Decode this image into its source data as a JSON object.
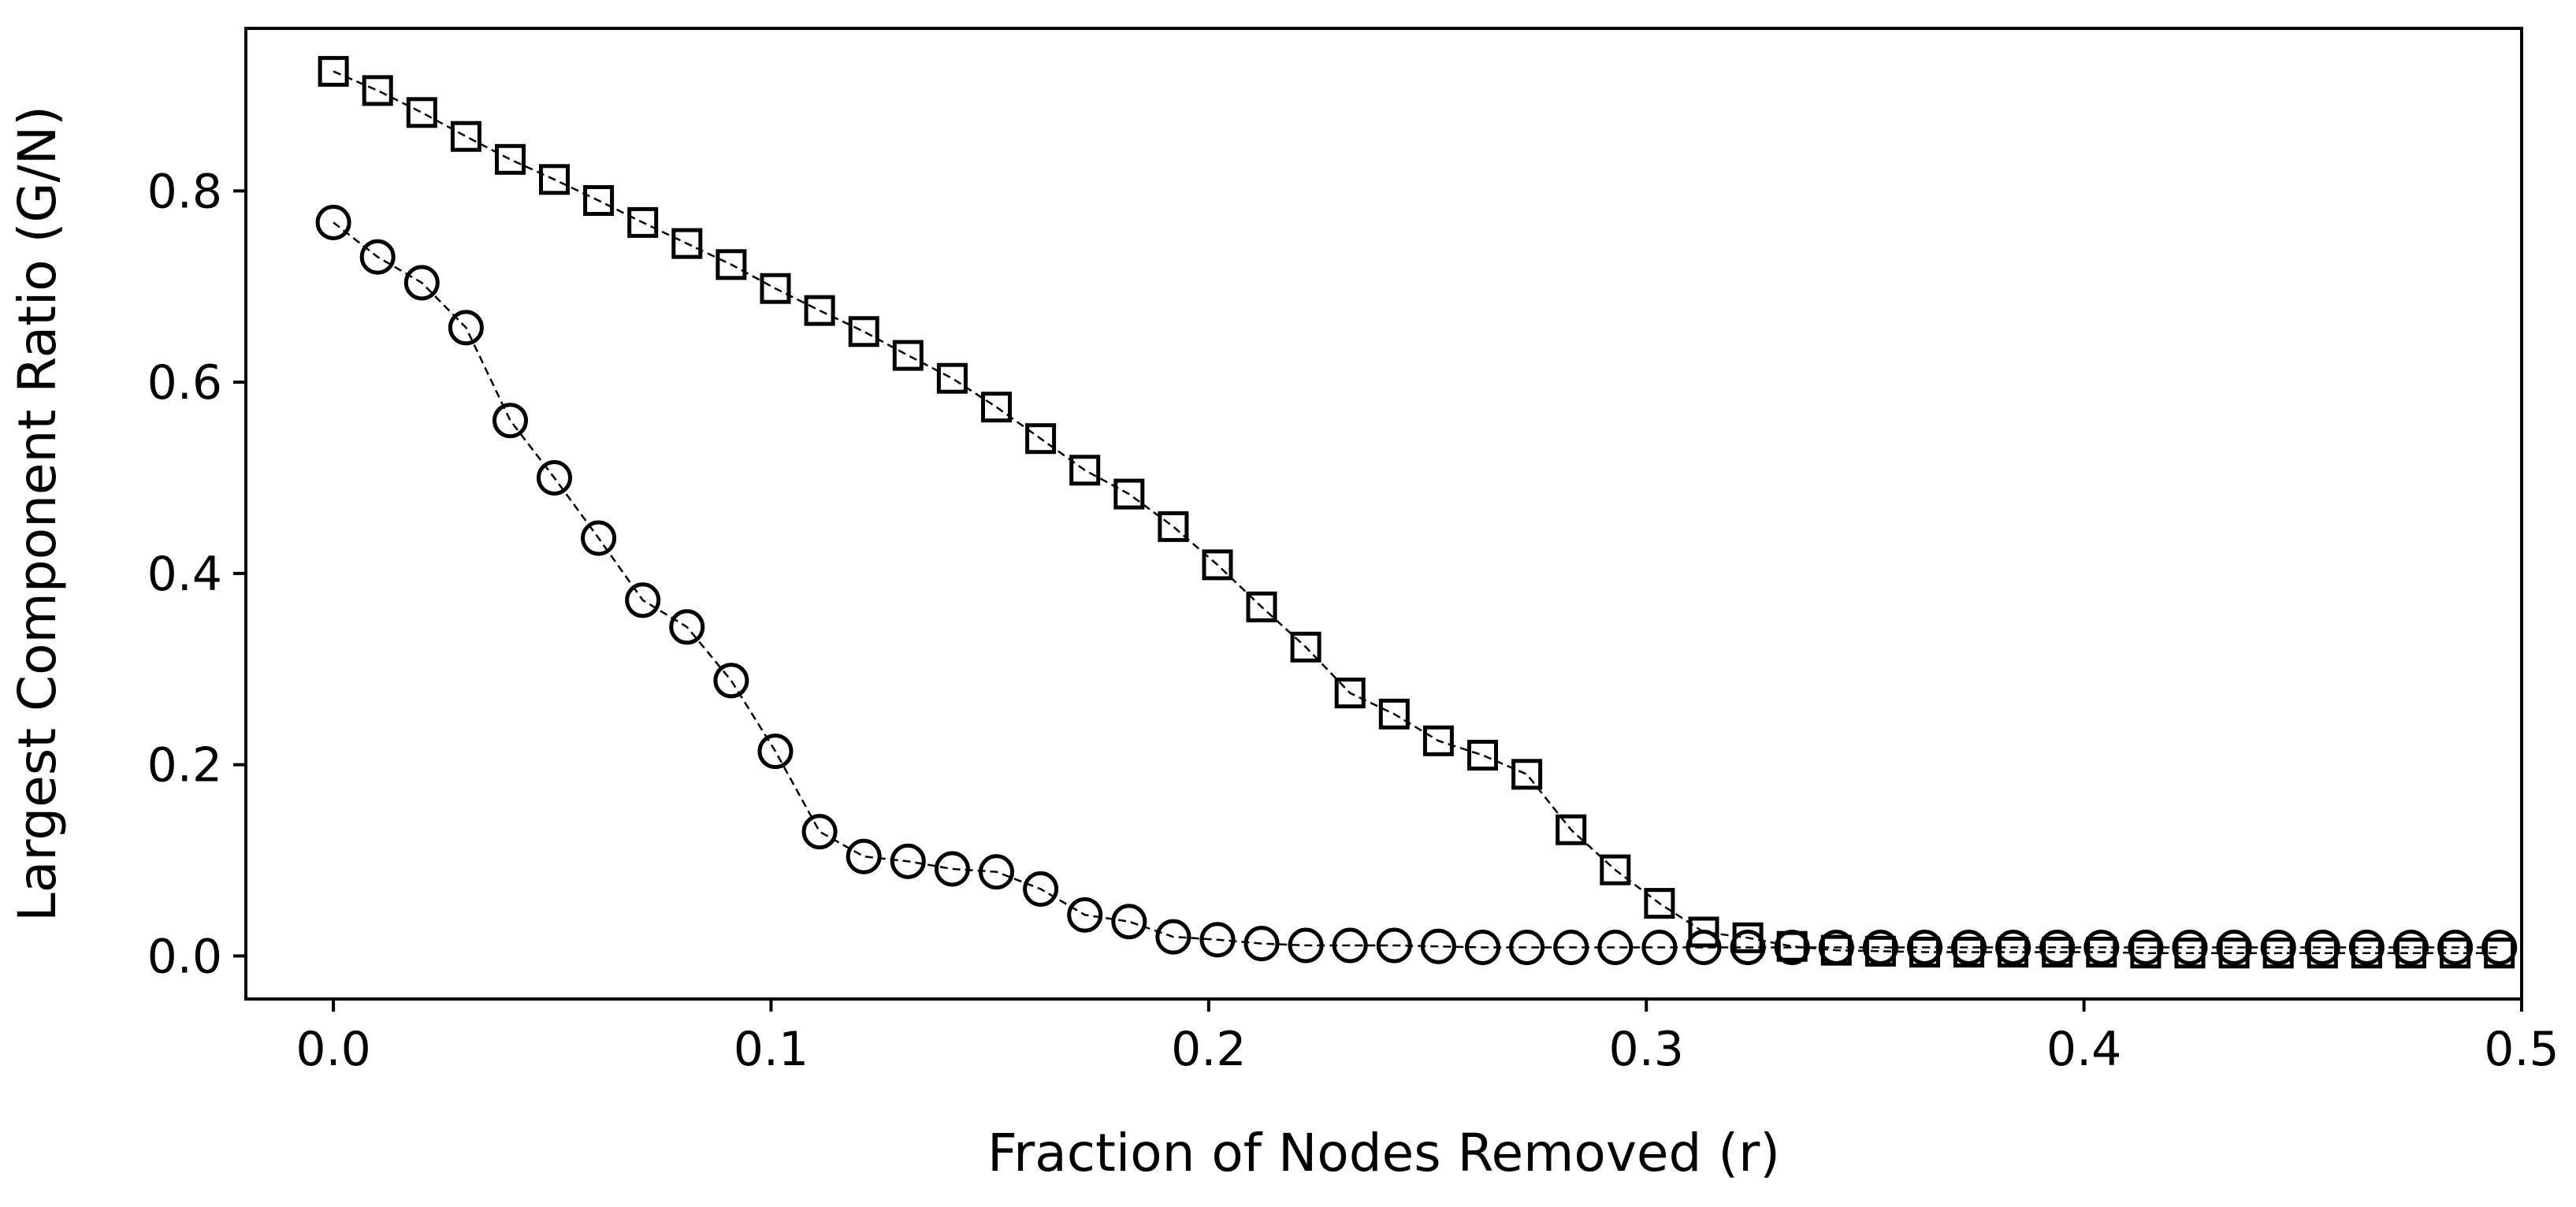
{
  "chart_data": {
    "type": "line",
    "title": "",
    "xlabel": "Fraction of Nodes Removed (r)",
    "ylabel": "Largest Component Ratio (G/N)",
    "xlim": [
      -0.02,
      0.5
    ],
    "ylim": [
      -0.045,
      0.97
    ],
    "xticks": [
      0.0,
      0.1,
      0.2,
      0.3,
      0.4,
      0.5
    ],
    "xtick_labels": [
      "0.0",
      "0.1",
      "0.2",
      "0.3",
      "0.4",
      "0.5"
    ],
    "yticks": [
      0.0,
      0.2,
      0.4,
      0.6,
      0.8
    ],
    "ytick_labels": [
      "0.0",
      "0.2",
      "0.4",
      "0.6",
      "0.8"
    ],
    "grid": false,
    "legend": "none",
    "colors": {
      "line": "#000000",
      "marker_face": "#ffffff",
      "marker_edge": "#000000"
    },
    "x": [
      0.0,
      0.0101,
      0.0202,
      0.0303,
      0.0404,
      0.0505,
      0.0606,
      0.0707,
      0.0808,
      0.0909,
      0.101,
      0.1111,
      0.1212,
      0.1313,
      0.1414,
      0.1515,
      0.1616,
      0.1717,
      0.1818,
      0.1919,
      0.202,
      0.2121,
      0.2222,
      0.2323,
      0.2424,
      0.2525,
      0.2626,
      0.2727,
      0.2828,
      0.2929,
      0.303,
      0.3131,
      0.3232,
      0.3333,
      0.3434,
      0.3535,
      0.3636,
      0.3737,
      0.3838,
      0.3939,
      0.404,
      0.4141,
      0.4242,
      0.4343,
      0.4444,
      0.4545,
      0.4646,
      0.4747,
      0.4848,
      0.4949
    ],
    "series": [
      {
        "marker": "square",
        "line_style": "dashed",
        "values": [
          0.925,
          0.905,
          0.882,
          0.857,
          0.833,
          0.812,
          0.79,
          0.767,
          0.745,
          0.723,
          0.698,
          0.675,
          0.653,
          0.628,
          0.604,
          0.574,
          0.541,
          0.508,
          0.483,
          0.449,
          0.409,
          0.365,
          0.323,
          0.275,
          0.253,
          0.225,
          0.21,
          0.19,
          0.132,
          0.09,
          0.055,
          0.025,
          0.019,
          0.01,
          0.006,
          0.005,
          0.004,
          0.004,
          0.004,
          0.004,
          0.004,
          0.003,
          0.003,
          0.003,
          0.003,
          0.003,
          0.003,
          0.003,
          0.003,
          0.003
        ]
      },
      {
        "marker": "circle",
        "line_style": "dashed",
        "values": [
          0.767,
          0.731,
          0.704,
          0.657,
          0.56,
          0.5,
          0.437,
          0.372,
          0.344,
          0.288,
          0.214,
          0.13,
          0.104,
          0.099,
          0.091,
          0.088,
          0.07,
          0.043,
          0.036,
          0.02,
          0.017,
          0.013,
          0.011,
          0.011,
          0.011,
          0.01,
          0.009,
          0.009,
          0.009,
          0.009,
          0.009,
          0.009,
          0.009,
          0.009,
          0.009,
          0.009,
          0.009,
          0.009,
          0.009,
          0.009,
          0.009,
          0.009,
          0.009,
          0.009,
          0.009,
          0.009,
          0.009,
          0.009,
          0.009,
          0.009
        ]
      }
    ]
  }
}
